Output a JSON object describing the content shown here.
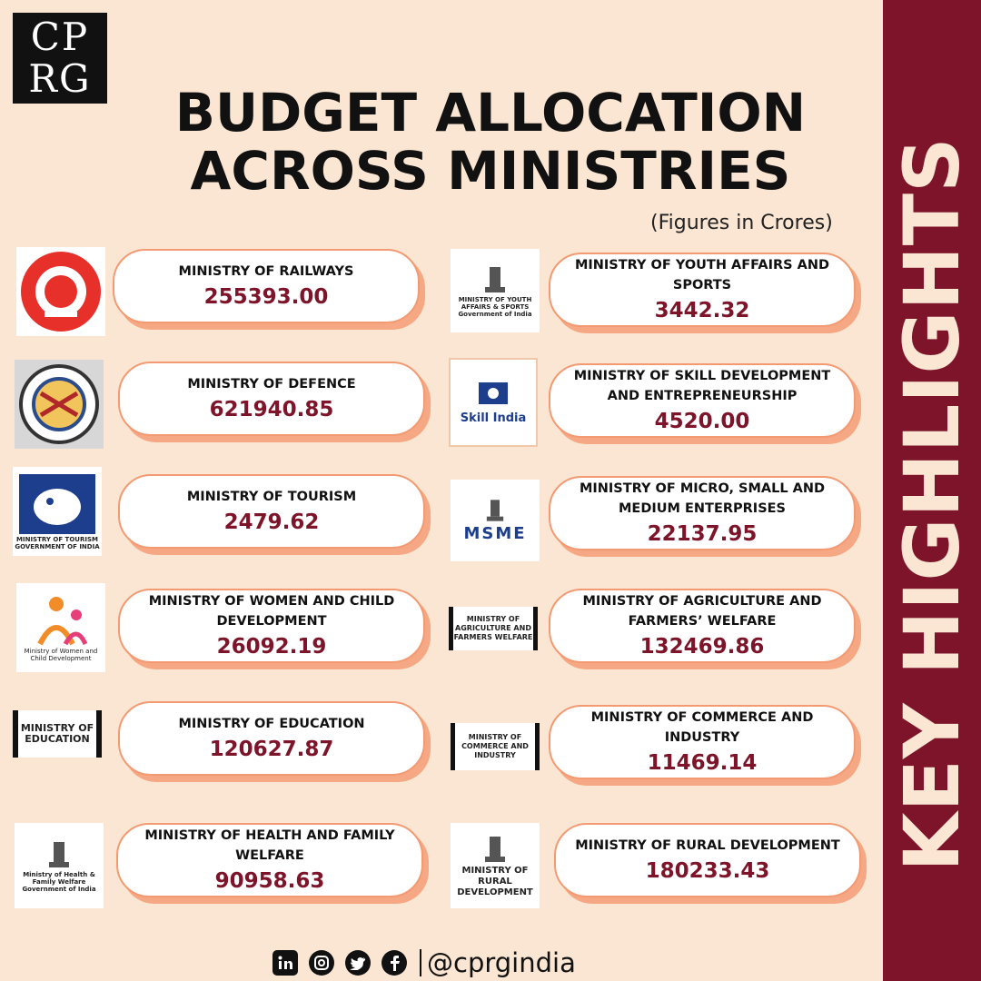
{
  "brand": {
    "logo_line1": "CP",
    "logo_line2": "RG"
  },
  "header": {
    "title_line1": "BUDGET ALLOCATION",
    "title_line2": "ACROSS MINISTRIES",
    "units_note": "(Figures in Crores)"
  },
  "sidebar": {
    "text": "KEY HIGHLIGHTS"
  },
  "ministries": [
    {
      "name": "MINISTRY OF RAILWAYS",
      "value": "255393.00",
      "emblem": "indian-railways-emblem-icon"
    },
    {
      "name": "MINISTRY OF YOUTH AFFAIRS AND SPORTS",
      "value": "3442.32",
      "emblem": "national-emblem-icon",
      "emblem_caption": "MINISTRY OF YOUTH AFFAIRS & SPORTS Government of India"
    },
    {
      "name": "MINISTRY OF DEFENCE",
      "value": "621940.85",
      "emblem": "drdo-emblem-icon"
    },
    {
      "name": "MINISTRY OF SKILL DEVELOPMENT AND ENTREPRENEURSHIP",
      "value": "4520.00",
      "emblem": "skill-india-logo-icon",
      "emblem_caption": "Skill India"
    },
    {
      "name": "MINISTRY OF TOURISM",
      "value": "2479.62",
      "emblem": "tourism-elephant-icon",
      "emblem_caption": "MINISTRY OF TOURISM GOVERNMENT OF INDIA"
    },
    {
      "name": "MINISTRY OF MICRO, SMALL AND MEDIUM ENTERPRISES",
      "value": "22137.95",
      "emblem": "msme-logo-icon",
      "emblem_caption": "MSME"
    },
    {
      "name": "MINISTRY OF WOMEN AND CHILD DEVELOPMENT",
      "value": "26092.19",
      "emblem": "women-child-logo-icon",
      "emblem_caption": "Ministry of Women and Child Development"
    },
    {
      "name": "MINISTRY OF AGRICULTURE AND FARMERS’ WELFARE",
      "value": "132469.86",
      "emblem": "national-emblem-icon",
      "emblem_caption": "MINISTRY OF AGRICULTURE AND FARMERS WELFARE"
    },
    {
      "name": "MINISTRY OF EDUCATION",
      "value": "120627.87",
      "emblem": "national-emblem-icon",
      "emblem_caption": "MINISTRY OF EDUCATION"
    },
    {
      "name": "MINISTRY OF COMMERCE AND INDUSTRY",
      "value": "11469.14",
      "emblem": "national-emblem-icon",
      "emblem_caption": "MINISTRY OF COMMERCE AND INDUSTRY"
    },
    {
      "name": "MINISTRY OF HEALTH AND FAMILY WELFARE",
      "value": "90958.63",
      "emblem": "national-emblem-icon",
      "emblem_caption": "Ministry of Health & Family Welfare Government of India"
    },
    {
      "name": "MINISTRY OF RURAL DEVELOPMENT",
      "value": "180233.43",
      "emblem": "national-emblem-icon",
      "emblem_caption": "MINISTRY OF RURAL DEVELOPMENT"
    }
  ],
  "footer": {
    "handle": "@cprgindia",
    "icons": [
      "linkedin-icon",
      "instagram-icon",
      "twitter-icon",
      "facebook-icon"
    ]
  },
  "colors": {
    "background": "#fbe6d3",
    "accent": "#7d1429",
    "card_border": "#f39a72"
  }
}
